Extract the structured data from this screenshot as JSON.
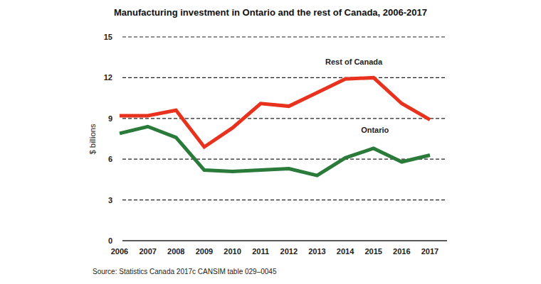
{
  "chart_data": {
    "type": "line",
    "title": "Manufacturing investment in Ontario and the rest of Canada, 2006-2017",
    "y_label": "$ billions",
    "source": "Source: Statistics Canada 2017c CANSIM table 029–0045",
    "categories": [
      "2006",
      "2007",
      "2008",
      "2009",
      "2010",
      "2011",
      "2012",
      "2013",
      "2014",
      "2015",
      "2016",
      "2017"
    ],
    "series": [
      {
        "name": "Rest of Canada",
        "color": "#e8321e",
        "values": [
          9.2,
          9.2,
          9.6,
          6.9,
          8.3,
          10.1,
          9.9,
          10.9,
          11.9,
          12.0,
          10.1,
          8.9
        ]
      },
      {
        "name": "Ontario",
        "color": "#2a7a3a",
        "values": [
          7.9,
          8.4,
          7.6,
          5.2,
          5.1,
          5.2,
          5.3,
          4.8,
          6.1,
          6.8,
          5.8,
          6.3
        ]
      }
    ],
    "ylim": [
      0,
      15
    ],
    "yticks": [
      0,
      3,
      6,
      9,
      12,
      15
    ],
    "grid": true
  }
}
